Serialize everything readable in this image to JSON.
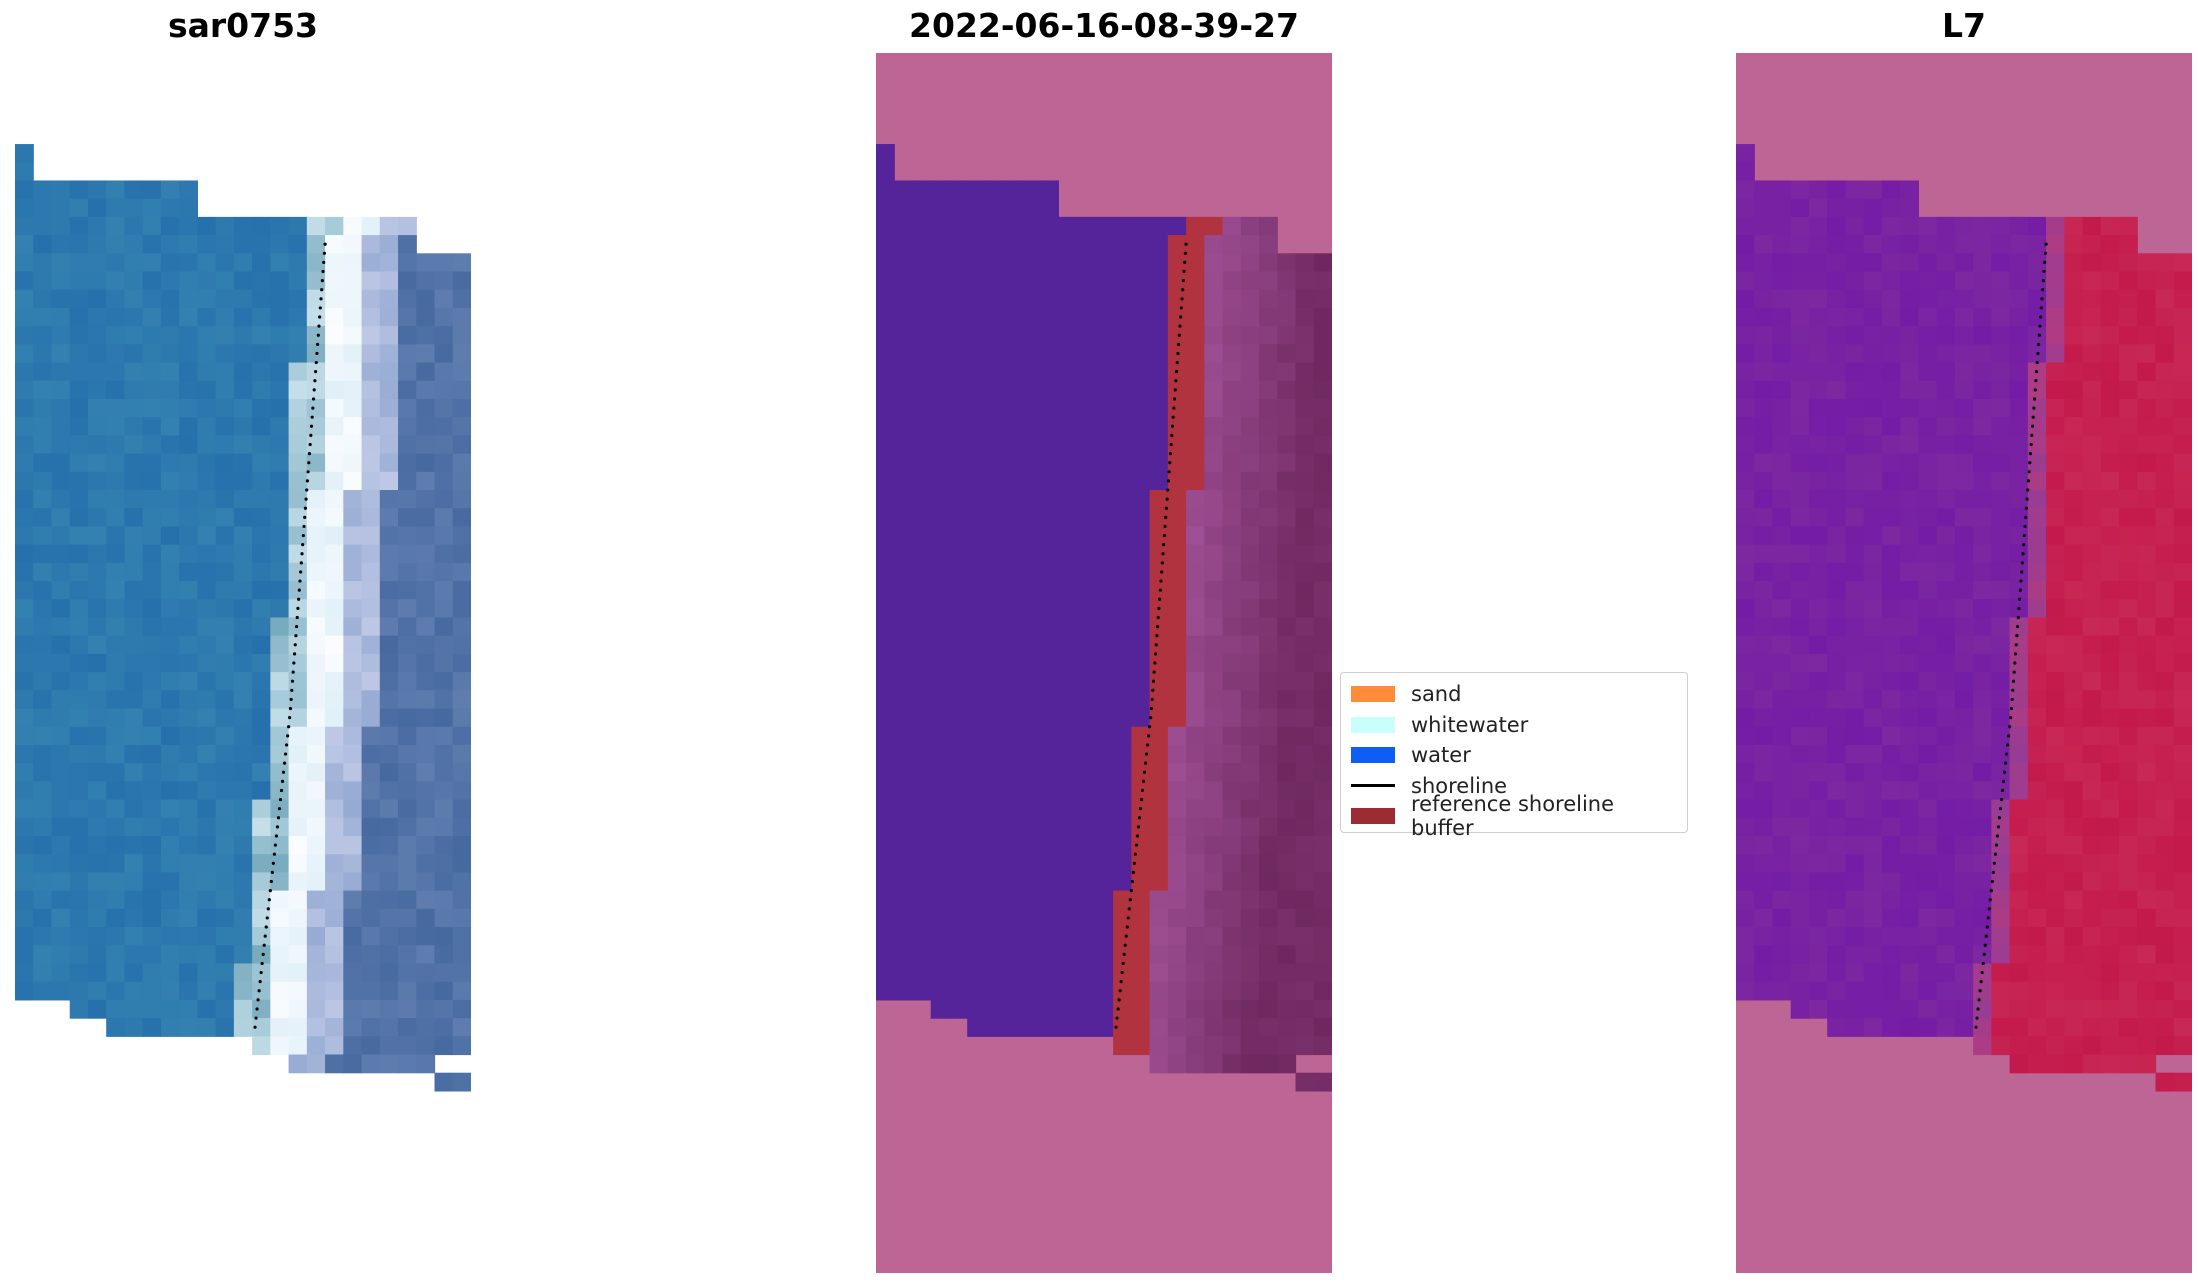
{
  "figure": {
    "panels": [
      {
        "title": "sar0753"
      },
      {
        "title": "2022-06-16-08-39-27"
      },
      {
        "title": "L7"
      }
    ],
    "legend": {
      "items": [
        {
          "label": "sand",
          "color": "#ff8c3a",
          "kind": "patch"
        },
        {
          "label": "whitewater",
          "color": "#c8fffc",
          "kind": "patch"
        },
        {
          "label": "water",
          "color": "#0e5ef5",
          "kind": "patch"
        },
        {
          "label": "shoreline",
          "color": "#000000",
          "kind": "line"
        },
        {
          "label": "reference shoreline buffer",
          "color": "#9b2c33",
          "kind": "patch"
        }
      ]
    },
    "colors": {
      "nodata_overlay": "#bd6594",
      "water_class": "#55239a",
      "buffer_overlay": "#b0333f",
      "index_land": "#c0154c",
      "index_water": "#7b27a6"
    }
  }
}
